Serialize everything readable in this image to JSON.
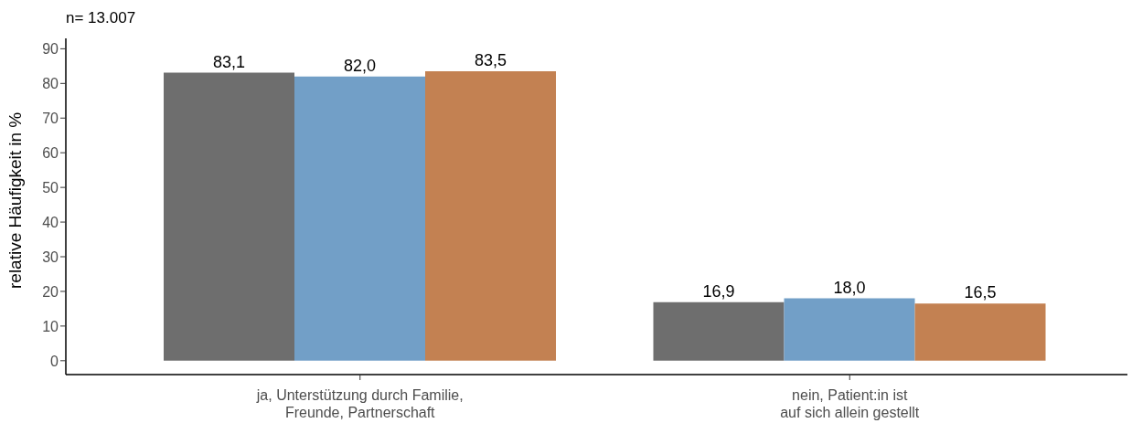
{
  "chart_data": {
    "type": "bar",
    "title": "n= 13.007",
    "ylabel": "relative Häufigkeit in %",
    "categories": [
      "ja, Unterstützung durch Familie,\nFreunde, Partnerschaft",
      "nein, Patient:in ist\nauf sich allein gestellt"
    ],
    "series": [
      {
        "color": "#6e6e6e",
        "values": [
          83.1,
          16.9
        ],
        "value_labels": [
          "83,1",
          "16,9"
        ]
      },
      {
        "color": "#729fc7",
        "values": [
          82.0,
          18.0
        ],
        "value_labels": [
          "82,0",
          "18,0"
        ]
      },
      {
        "color": "#c38152",
        "values": [
          83.5,
          16.5
        ],
        "value_labels": [
          "83,5",
          "16,5"
        ]
      }
    ],
    "ylim": [
      -4,
      93
    ],
    "yticks": [
      0,
      10,
      20,
      30,
      40,
      50,
      60,
      70,
      80,
      90
    ]
  }
}
